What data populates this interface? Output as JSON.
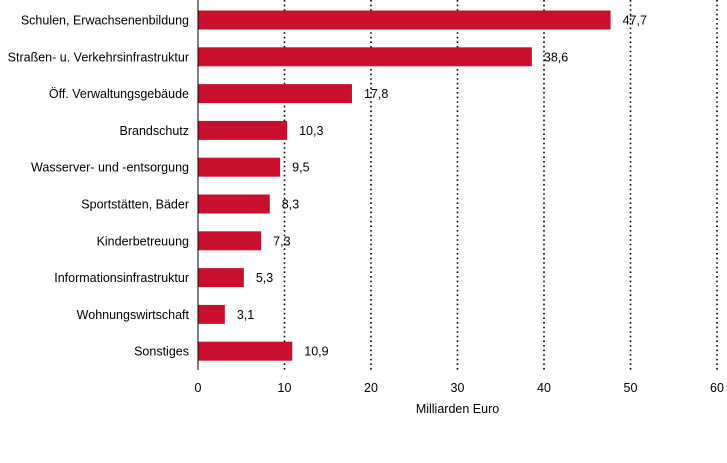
{
  "chart_data": {
    "type": "bar",
    "orientation": "horizontal",
    "categories": [
      "Schulen, Erwachsenenbildung",
      "Straßen- u. Verkehrsinfrastruktur",
      "Öff. Verwaltungsgebäude",
      "Brandschutz",
      "Wasserver- und -entsorgung",
      "Sportstätten, Bäder",
      "Kinderbetreuung",
      "Informationsinfrastruktur",
      "Wohnungswirtschaft",
      "Sonstiges"
    ],
    "values": [
      47.7,
      38.6,
      17.8,
      10.3,
      9.5,
      8.3,
      7.3,
      5.3,
      3.1,
      10.9
    ],
    "value_labels": [
      "47,7",
      "38,6",
      "17,8",
      "10,3",
      "9,5",
      "8,3",
      "7,3",
      "5,3",
      "3,1",
      "10,9"
    ],
    "xlabel": "Milliarden Euro",
    "xlim": [
      0,
      60
    ],
    "x_ticks": [
      0,
      10,
      20,
      30,
      40,
      50,
      60
    ],
    "x_tick_labels": [
      "0",
      "10",
      "20",
      "30",
      "40",
      "50",
      "60"
    ],
    "grid": "vertical dotted",
    "bar_color": "#c8102e"
  }
}
